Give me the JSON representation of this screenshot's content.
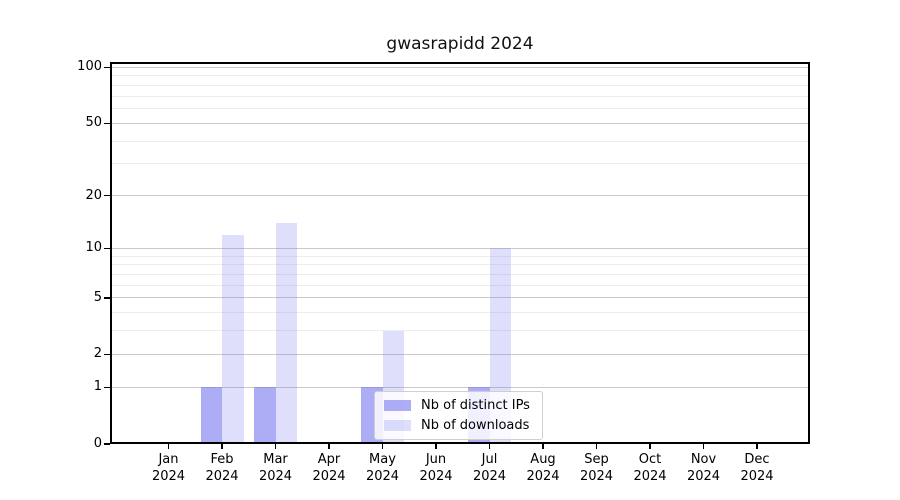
{
  "chart_data": {
    "type": "bar",
    "title": "gwasrapidd 2024",
    "x": {
      "months": [
        "Jan",
        "Feb",
        "Mar",
        "Apr",
        "May",
        "Jun",
        "Jul",
        "Aug",
        "Sep",
        "Oct",
        "Nov",
        "Dec"
      ],
      "year": "2024"
    },
    "series": [
      {
        "name": "Nb of distinct IPs",
        "color": "rgba(122,122,240,0.62)",
        "values": [
          0,
          1,
          1,
          0,
          1,
          0,
          1,
          0,
          0,
          0,
          0,
          0
        ]
      },
      {
        "name": "Nb of downloads",
        "color": "rgba(122,122,240,0.24)",
        "values": [
          0,
          12,
          14,
          0,
          3,
          0,
          10,
          0,
          0,
          0,
          0,
          0
        ]
      }
    ],
    "y_axis": {
      "scale": "log10(value+1)",
      "major_ticks": [
        0,
        1,
        2,
        5,
        10,
        20,
        50,
        100
      ],
      "minor_gridlines": [
        3,
        4,
        6,
        7,
        8,
        9,
        30,
        40,
        60,
        70,
        80,
        90
      ],
      "max": 107
    },
    "legend": {
      "position": "inside-bottom-center",
      "entries": [
        "Nb of distinct IPs",
        "Nb of downloads"
      ]
    },
    "grid": "horizontal",
    "colors": {
      "major_grid": "#c9c9c9",
      "minor_grid": "#ededed",
      "spine": "#000000"
    }
  }
}
